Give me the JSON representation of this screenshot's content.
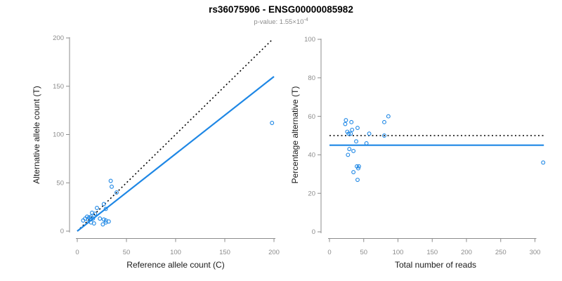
{
  "header": {
    "title": "rs36075906 - ENSG00000085982",
    "subtitle_prefix": "p-value: 1.55×10",
    "subtitle_exponent": "-4"
  },
  "colors": {
    "accent": "#1E87E5",
    "identity": "#000000",
    "axis": "#8c8c8c",
    "tick_label": "#8c8c8c",
    "axis_title": "#1a1a1a"
  },
  "chart_data": [
    {
      "type": "scatter",
      "panel": "left",
      "xlabel": "Reference allele count (C)",
      "ylabel": "Alternative allele count (T)",
      "xlim": [
        0,
        200
      ],
      "ylim": [
        0,
        200
      ],
      "xticks": [
        0,
        50,
        100,
        150,
        200
      ],
      "yticks": [
        0,
        50,
        100,
        150,
        200
      ],
      "grid": false,
      "legend": null,
      "points": [
        [
          6,
          11
        ],
        [
          8,
          13
        ],
        [
          10,
          15
        ],
        [
          11,
          12
        ],
        [
          12,
          14
        ],
        [
          14,
          9
        ],
        [
          14,
          15
        ],
        [
          15,
          19
        ],
        [
          16,
          13
        ],
        [
          17,
          8
        ],
        [
          18,
          18
        ],
        [
          20,
          24
        ],
        [
          23,
          13
        ],
        [
          26,
          7
        ],
        [
          27,
          12
        ],
        [
          29,
          9
        ],
        [
          29,
          11
        ],
        [
          32,
          10
        ],
        [
          27,
          28
        ],
        [
          29,
          23
        ],
        [
          34,
          52
        ],
        [
          35,
          46
        ],
        [
          40,
          40
        ],
        [
          198,
          112
        ]
      ],
      "lines": [
        {
          "name": "identity-line",
          "style": "dotted",
          "color": "#000000",
          "from": [
            0,
            0
          ],
          "to": [
            198,
            198
          ]
        },
        {
          "name": "regression-line",
          "style": "solid",
          "color": "#1E87E5",
          "from": [
            0,
            0
          ],
          "to": [
            200,
            160
          ]
        }
      ]
    },
    {
      "type": "scatter",
      "panel": "right",
      "xlabel": "Total number of reads",
      "ylabel": "Percentage alternative (T)",
      "xlim": [
        0,
        310
      ],
      "ylim": [
        0,
        100
      ],
      "xticks": [
        0,
        50,
        100,
        150,
        200,
        250,
        300
      ],
      "yticks": [
        0,
        20,
        40,
        60,
        80,
        100
      ],
      "grid": false,
      "legend": null,
      "points": [
        [
          23,
          56
        ],
        [
          24,
          58
        ],
        [
          26,
          52
        ],
        [
          28,
          51
        ],
        [
          31,
          51
        ],
        [
          32,
          57
        ],
        [
          33,
          53
        ],
        [
          27,
          40
        ],
        [
          29,
          43
        ],
        [
          35,
          42
        ],
        [
          35,
          31
        ],
        [
          39,
          47
        ],
        [
          40,
          34
        ],
        [
          41,
          54
        ],
        [
          41,
          27
        ],
        [
          42,
          33
        ],
        [
          43,
          34
        ],
        [
          54,
          46
        ],
        [
          58,
          51
        ],
        [
          80,
          57
        ],
        [
          80,
          50
        ],
        [
          86,
          60
        ],
        [
          312,
          36
        ]
      ],
      "lines": [
        {
          "name": "expected-percentage-line",
          "style": "dotted",
          "color": "#000000",
          "from": [
            0,
            50
          ],
          "to": [
            313,
            50
          ]
        },
        {
          "name": "mean-percentage-line",
          "style": "solid",
          "color": "#1E87E5",
          "from": [
            0,
            45
          ],
          "to": [
            313,
            45
          ]
        }
      ]
    }
  ]
}
